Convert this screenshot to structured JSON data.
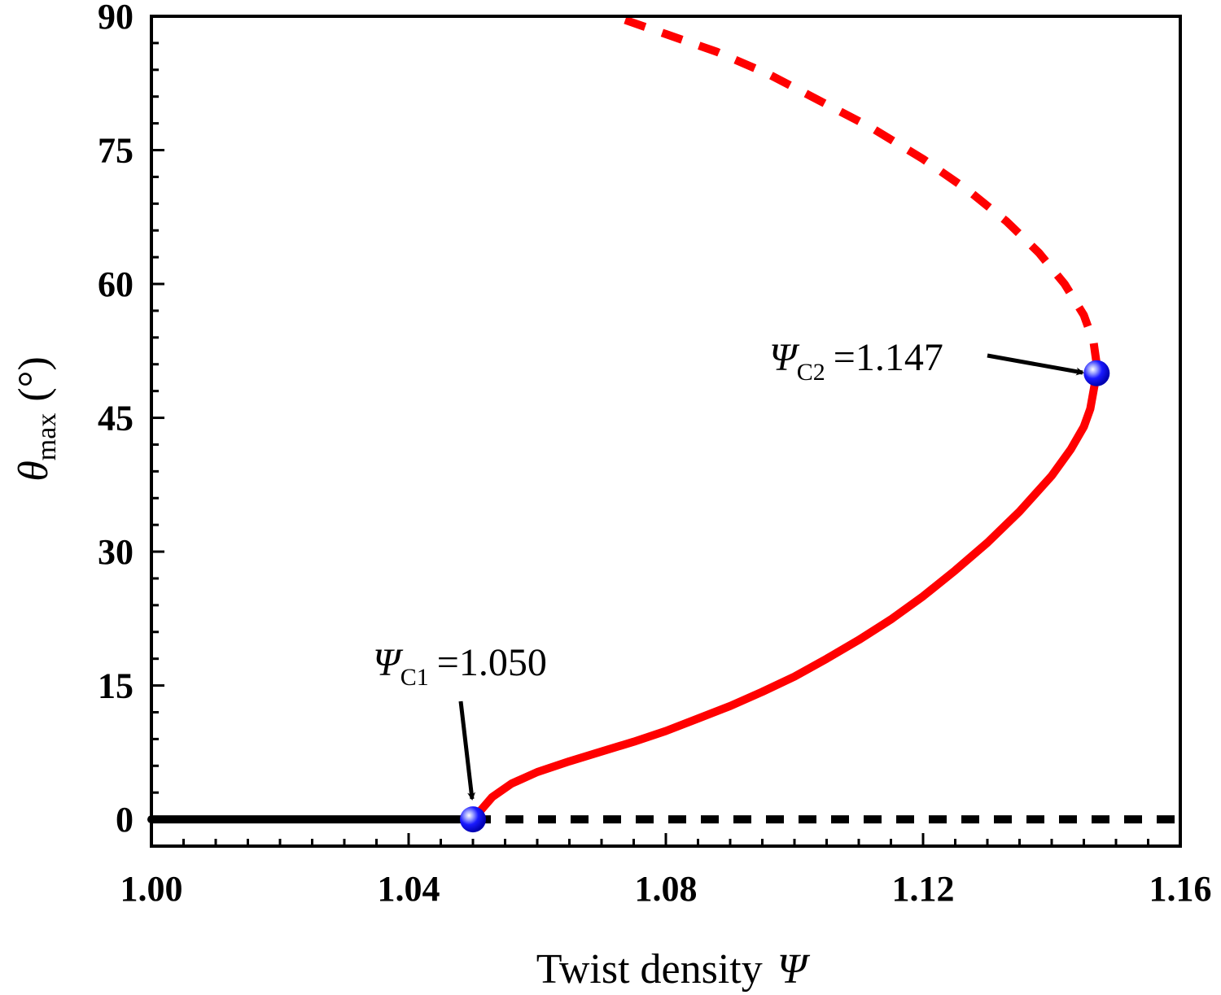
{
  "chart_data": {
    "type": "line",
    "xlabel": {
      "text": "Twist density",
      "symbol": "Ψ"
    },
    "ylabel": {
      "symbol": "θ",
      "subscript": "max",
      "unit": "(°)"
    },
    "xlim": [
      1.0,
      1.16
    ],
    "ylim": [
      -3,
      90
    ],
    "xticks": [
      1.0,
      1.04,
      1.08,
      1.12,
      1.16
    ],
    "xtick_labels": [
      "1.00",
      "1.04",
      "1.08",
      "1.12",
      "1.16"
    ],
    "yticks": [
      0,
      15,
      30,
      45,
      60,
      75,
      90
    ],
    "ytick_labels": [
      "0",
      "15",
      "30",
      "45",
      "60",
      "75",
      "90"
    ],
    "grid": false,
    "legend": "none",
    "series": [
      {
        "style": "solid",
        "color": "#000000",
        "x": [
          1.0,
          1.05
        ],
        "y": [
          0,
          0
        ]
      },
      {
        "style": "dashed",
        "color": "#000000",
        "x": [
          1.05,
          1.16
        ],
        "y": [
          0,
          0
        ]
      },
      {
        "style": "solid",
        "color": "#ff0000",
        "x": [
          1.05,
          1.053,
          1.056,
          1.06,
          1.065,
          1.07,
          1.075,
          1.08,
          1.085,
          1.09,
          1.095,
          1.1,
          1.105,
          1.11,
          1.115,
          1.12,
          1.125,
          1.13,
          1.135,
          1.14,
          1.143,
          1.145,
          1.146,
          1.147
        ],
        "y": [
          0,
          2.5,
          4.0,
          5.3,
          6.5,
          7.6,
          8.7,
          9.9,
          11.3,
          12.7,
          14.3,
          16.0,
          18.0,
          20.1,
          22.4,
          25.0,
          27.9,
          31.0,
          34.5,
          38.5,
          41.5,
          44.0,
          46.0,
          50.0
        ]
      },
      {
        "style": "dashed",
        "color": "#ff0000",
        "x": [
          1.147,
          1.1465,
          1.145,
          1.142,
          1.138,
          1.133,
          1.127,
          1.12,
          1.112,
          1.104,
          1.096,
          1.088,
          1.08,
          1.072
        ],
        "y": [
          51.0,
          53.5,
          56.5,
          60.0,
          63.5,
          67.0,
          70.5,
          74.0,
          77.5,
          80.5,
          83.5,
          86.0,
          88.0,
          90.0
        ]
      }
    ],
    "markers": [
      {
        "x": 1.05,
        "y": 0,
        "color": "#1a1aff"
      },
      {
        "x": 1.147,
        "y": 50,
        "color": "#1a1aff"
      }
    ],
    "annotations": [
      {
        "symbol": "Ψ",
        "subscript": "C1",
        "text": "=1.050",
        "target": {
          "x": 1.05,
          "y": 0
        }
      },
      {
        "symbol": "Ψ",
        "subscript": "C2",
        "text": "=1.147",
        "target": {
          "x": 1.147,
          "y": 50
        }
      }
    ]
  }
}
